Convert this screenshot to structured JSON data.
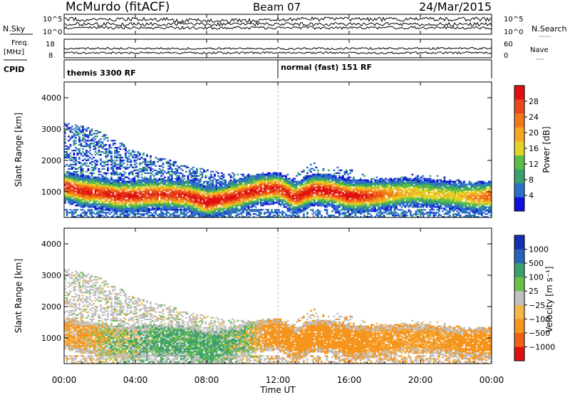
{
  "header": {
    "station": "McMurdo (fitACF)",
    "beam": "Beam 07",
    "date": "24/Mar/2015"
  },
  "strips": {
    "nsky_label": "N.Sky",
    "nsearch_label": "N.Search",
    "nsearch_dots": "·······",
    "noise_ticks": [
      "10^5",
      "10^0"
    ],
    "freq_label": "Freq.",
    "freq_unit": "[MHz]",
    "freq_ticks": [
      "18",
      "8"
    ],
    "nave_label": "Nave",
    "nave_dots": "····",
    "nave_ticks": [
      "60",
      "0"
    ],
    "cpid_label": "CPID",
    "cpid_left": "themis 3300 RF",
    "cpid_right": "normal (fast) 151 RF"
  },
  "time_axis": {
    "label": "Time UT",
    "ticks": [
      "00:00",
      "04:00",
      "08:00",
      "12:00",
      "16:00",
      "20:00",
      "00:00"
    ]
  },
  "colors": {
    "power": [
      "#1010d8",
      "#2b6fc8",
      "#3c9f6e",
      "#5cbf48",
      "#e4d224",
      "#f5a623",
      "#f07a18",
      "#e8481a",
      "#e01010"
    ],
    "velocity": [
      "#e01010",
      "#f06018",
      "#f5951e",
      "#f6b64a",
      "#c0c0c0",
      "#6cc04a",
      "#3c9f6e",
      "#2a64b8",
      "#1530b0"
    ]
  },
  "chart_data": [
    {
      "type": "heatmap",
      "title": "",
      "xlabel": "",
      "ylabel": "Slant Range [km]",
      "xlim": [
        "00:00",
        "00:00"
      ],
      "ylim": [
        180,
        4500
      ],
      "yticks": [
        "1000",
        "2000",
        "3000",
        "4000"
      ],
      "colorbar": {
        "label": "Power [dB]",
        "ticks": [
          "4",
          "8",
          "12",
          "16",
          "20",
          "24",
          "28"
        ],
        "range": [
          0,
          30
        ]
      },
      "profile": {
        "hours": [
          0,
          1,
          2,
          3,
          4,
          5,
          6,
          7,
          8,
          9,
          10,
          11,
          12,
          13,
          14,
          15,
          16,
          17,
          18,
          19,
          20,
          21,
          22,
          23,
          24
        ],
        "peak_range_km": [
          1150,
          1000,
          950,
          850,
          850,
          900,
          900,
          850,
          650,
          750,
          900,
          1050,
          1100,
          800,
          1050,
          1000,
          850,
          850,
          900,
          950,
          950,
          900,
          850,
          800,
          850
        ],
        "peak_power_db": [
          26,
          28,
          27,
          28,
          28,
          26,
          26,
          27,
          30,
          28,
          28,
          28,
          27,
          28,
          29,
          28,
          29,
          27,
          22,
          18,
          16,
          16,
          16,
          20,
          24
        ],
        "upper_echo_km": [
          3200,
          3100,
          2900,
          2600,
          2300,
          2100,
          2000,
          1800,
          1700,
          1600,
          1550,
          1500,
          1450,
          1600,
          1900,
          1800,
          1700,
          1500,
          1400,
          1500,
          1600,
          1500,
          1400,
          1300,
          1350
        ]
      }
    },
    {
      "type": "heatmap",
      "title": "",
      "xlabel": "Time UT",
      "ylabel": "Slant Range [km]",
      "xlim": [
        "00:00",
        "00:00"
      ],
      "ylim": [
        180,
        4500
      ],
      "yticks": [
        "1000",
        "2000",
        "3000",
        "4000"
      ],
      "colorbar": {
        "label": "Velocity [m s⁻¹]",
        "ticks": [
          "1000",
          "500",
          "100",
          "25",
          "−25",
          "−100",
          "−500",
          "−1000"
        ]
      },
      "profile": {
        "hours": [
          0,
          1,
          2,
          3,
          4,
          5,
          6,
          7,
          8,
          9,
          10,
          11,
          12,
          13,
          14,
          15,
          16,
          17,
          18,
          19,
          20,
          21,
          22,
          23,
          24
        ],
        "dominant_velocity_ms": [
          -120,
          -100,
          -50,
          40,
          60,
          100,
          120,
          120,
          150,
          80,
          40,
          -80,
          -300,
          -300,
          -280,
          -300,
          -250,
          -200,
          -150,
          -150,
          -150,
          -150,
          -200,
          -300,
          -300
        ]
      }
    }
  ]
}
